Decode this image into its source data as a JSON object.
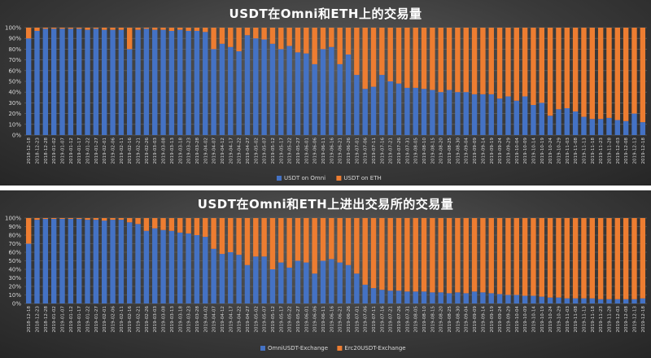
{
  "chart_data": [
    {
      "type": "bar",
      "stacked": "percent",
      "title": "USDT在Omni和ETH上的交易量",
      "xlabel": "",
      "ylabel": "",
      "ylim": [
        0,
        100
      ],
      "y_ticks": [
        "0%",
        "10%",
        "20%",
        "30%",
        "40%",
        "50%",
        "60%",
        "70%",
        "80%",
        "90%",
        "100%"
      ],
      "x_ticks": [
        "2018-12-18",
        "2018-12-23",
        "2018-12-28",
        "2019-01-02",
        "2019-01-07",
        "2019-01-12",
        "2019-01-17",
        "2019-01-22",
        "2019-01-27",
        "2019-02-01",
        "2019-02-06",
        "2019-02-11",
        "2019-02-16",
        "2019-02-21",
        "2019-02-26",
        "2019-03-03",
        "2019-03-08",
        "2019-03-13",
        "2019-03-18",
        "2019-03-23",
        "2019-03-28",
        "2019-04-02",
        "2019-04-07",
        "2019-04-12",
        "2019-04-17",
        "2019-04-22",
        "2019-04-27",
        "2019-05-02",
        "2019-05-07",
        "2019-05-12",
        "2019-05-17",
        "2019-05-22",
        "2019-05-27",
        "2019-06-01",
        "2019-06-06",
        "2019-06-11",
        "2019-06-16",
        "2019-06-21",
        "2019-06-26",
        "2019-07-01",
        "2019-07-06",
        "2019-07-11",
        "2019-07-16",
        "2019-07-21",
        "2019-07-26",
        "2019-07-31",
        "2019-08-05",
        "2019-08-10",
        "2019-08-15",
        "2019-08-20",
        "2019-08-25",
        "2019-08-30",
        "2019-09-04",
        "2019-09-09",
        "2019-09-14",
        "2019-09-19",
        "2019-09-24",
        "2019-09-29",
        "2019-10-04",
        "2019-10-09",
        "2019-10-14",
        "2019-10-19",
        "2019-10-24",
        "2019-10-29",
        "2019-11-03",
        "2019-11-08",
        "2019-11-13",
        "2019-11-18",
        "2019-11-23",
        "2019-11-28",
        "2019-12-03",
        "2019-12-08",
        "2019-12-13",
        "2019-12-18"
      ],
      "grid": true,
      "legend_position": "bottom",
      "series": [
        {
          "name": "USDT on Omni",
          "color": "#4472c4",
          "values": [
            90,
            97,
            99,
            99,
            99,
            99,
            99,
            98,
            99,
            98,
            98,
            98,
            80,
            98,
            99,
            98,
            98,
            97,
            98,
            97,
            97,
            96,
            80,
            85,
            82,
            78,
            93,
            90,
            89,
            85,
            80,
            83,
            77,
            76,
            66,
            80,
            82,
            66,
            75,
            56,
            43,
            45,
            56,
            50,
            48,
            44,
            44,
            43,
            42,
            40,
            42,
            40,
            40,
            38,
            38,
            38,
            34,
            36,
            32,
            36,
            28,
            30,
            18,
            24,
            25,
            22,
            17,
            15,
            15,
            16,
            14,
            13,
            20,
            12
          ]
        },
        {
          "name": "USDT on ETH",
          "color": "#ed7d31",
          "values": [
            10,
            3,
            1,
            1,
            1,
            1,
            1,
            2,
            1,
            2,
            2,
            2,
            20,
            2,
            1,
            2,
            2,
            3,
            2,
            3,
            3,
            4,
            20,
            15,
            18,
            22,
            7,
            10,
            11,
            15,
            20,
            17,
            23,
            24,
            34,
            20,
            18,
            34,
            25,
            44,
            57,
            55,
            44,
            50,
            52,
            56,
            56,
            57,
            58,
            60,
            58,
            60,
            60,
            62,
            62,
            62,
            66,
            64,
            68,
            64,
            72,
            70,
            82,
            76,
            75,
            78,
            83,
            85,
            85,
            84,
            86,
            87,
            80,
            88
          ]
        }
      ]
    },
    {
      "type": "bar",
      "stacked": "percent",
      "title": "USDT在Omni和ETH上进出交易所的交易量",
      "xlabel": "",
      "ylabel": "",
      "ylim": [
        0,
        100
      ],
      "y_ticks": [
        "0%",
        "10%",
        "20%",
        "30%",
        "40%",
        "50%",
        "60%",
        "70%",
        "80%",
        "90%",
        "100%"
      ],
      "x_ticks": [
        "2018-12-18",
        "2018-12-23",
        "2018-12-28",
        "2019-01-02",
        "2019-01-07",
        "2019-01-12",
        "2019-01-17",
        "2019-01-22",
        "2019-01-27",
        "2019-02-01",
        "2019-02-06",
        "2019-02-11",
        "2019-02-16",
        "2019-02-21",
        "2019-02-26",
        "2019-03-03",
        "2019-03-08",
        "2019-03-13",
        "2019-03-18",
        "2019-03-23",
        "2019-03-28",
        "2019-04-02",
        "2019-04-07",
        "2019-04-12",
        "2019-04-17",
        "2019-04-22",
        "2019-04-27",
        "2019-05-02",
        "2019-05-07",
        "2019-05-12",
        "2019-05-17",
        "2019-05-22",
        "2019-05-27",
        "2019-06-01",
        "2019-06-06",
        "2019-06-11",
        "2019-06-16",
        "2019-06-21",
        "2019-06-26",
        "2019-07-01",
        "2019-07-06",
        "2019-07-11",
        "2019-07-16",
        "2019-07-21",
        "2019-07-26",
        "2019-07-31",
        "2019-08-05",
        "2019-08-10",
        "2019-08-15",
        "2019-08-20",
        "2019-08-25",
        "2019-08-30",
        "2019-09-04",
        "2019-09-09",
        "2019-09-14",
        "2019-09-19",
        "2019-09-24",
        "2019-09-29",
        "2019-10-04",
        "2019-10-09",
        "2019-10-14",
        "2019-10-19",
        "2019-10-24",
        "2019-10-29",
        "2019-11-03",
        "2019-11-08",
        "2019-11-13",
        "2019-11-18",
        "2019-11-23",
        "2019-11-28",
        "2019-12-03",
        "2019-12-08",
        "2019-12-13",
        "2019-12-18"
      ],
      "grid": true,
      "legend_position": "bottom",
      "series": [
        {
          "name": "OmniUSDT-Exchange",
          "color": "#4472c4",
          "values": [
            70,
            98,
            99,
            99,
            99,
            99,
            99,
            98,
            98,
            97,
            98,
            98,
            95,
            93,
            85,
            88,
            86,
            85,
            83,
            82,
            80,
            78,
            64,
            58,
            60,
            57,
            45,
            55,
            55,
            40,
            48,
            42,
            50,
            48,
            35,
            50,
            52,
            48,
            45,
            35,
            22,
            18,
            16,
            15,
            15,
            14,
            14,
            14,
            13,
            13,
            12,
            13,
            12,
            14,
            13,
            12,
            11,
            10,
            10,
            9,
            9,
            8,
            7,
            7,
            6,
            6,
            6,
            6,
            5,
            5,
            5,
            5,
            5,
            6
          ]
        },
        {
          "name": "Erc20USDT-Exchange",
          "color": "#ed7d31",
          "values": [
            30,
            2,
            1,
            1,
            1,
            1,
            1,
            2,
            2,
            3,
            2,
            2,
            5,
            7,
            15,
            12,
            14,
            15,
            17,
            18,
            20,
            22,
            36,
            42,
            40,
            43,
            55,
            45,
            45,
            60,
            52,
            58,
            50,
            52,
            65,
            50,
            48,
            52,
            55,
            65,
            78,
            82,
            84,
            85,
            85,
            86,
            86,
            86,
            87,
            87,
            88,
            87,
            88,
            86,
            87,
            88,
            89,
            90,
            90,
            91,
            91,
            92,
            93,
            93,
            94,
            94,
            94,
            94,
            95,
            95,
            95,
            95,
            95,
            94
          ]
        }
      ]
    }
  ]
}
